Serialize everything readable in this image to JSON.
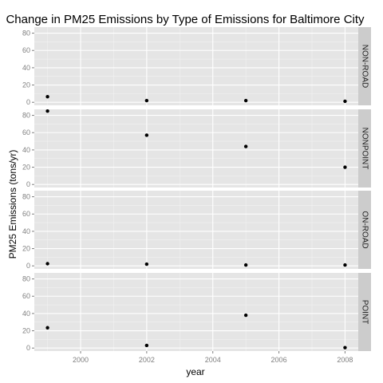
{
  "chart_data": {
    "type": "scatter",
    "title": "Change in PM25 Emissions by Type of Emissions for Baltimore City",
    "xlabel": "year",
    "ylabel": "PM25 Emissions (tons/yr)",
    "x_ticks": [
      2000,
      2002,
      2004,
      2006,
      2008
    ],
    "y_ticks": [
      0,
      20,
      40,
      60,
      80
    ],
    "xlim": [
      1998.6,
      2008.4
    ],
    "ylim": [
      -3.5,
      87
    ],
    "grid": true,
    "facet_layout": "stacked-vertical",
    "colors": {
      "panel_bg": "#e5e5e5",
      "grid_major": "#ffffff",
      "grid_minor": "#f2f2f2",
      "strip_bg": "#cccccc",
      "point": "#000000",
      "tick_text": "#7f7f7f"
    },
    "panels": [
      {
        "name": "NON-ROAD",
        "x": [
          1999,
          2002,
          2005,
          2008
        ],
        "y": [
          6.5,
          2.0,
          2.0,
          1.2
        ]
      },
      {
        "name": "NONPOINT",
        "x": [
          1999,
          2002,
          2005,
          2008
        ],
        "y": [
          85.0,
          57.0,
          44.0,
          20.0
        ]
      },
      {
        "name": "ON-ROAD",
        "x": [
          1999,
          2002,
          2005,
          2008
        ],
        "y": [
          2.5,
          2.0,
          1.0,
          1.0
        ]
      },
      {
        "name": "POINT",
        "x": [
          1999,
          2002,
          2005,
          2008
        ],
        "y": [
          23.5,
          3.0,
          38.0,
          0.5
        ]
      }
    ]
  }
}
